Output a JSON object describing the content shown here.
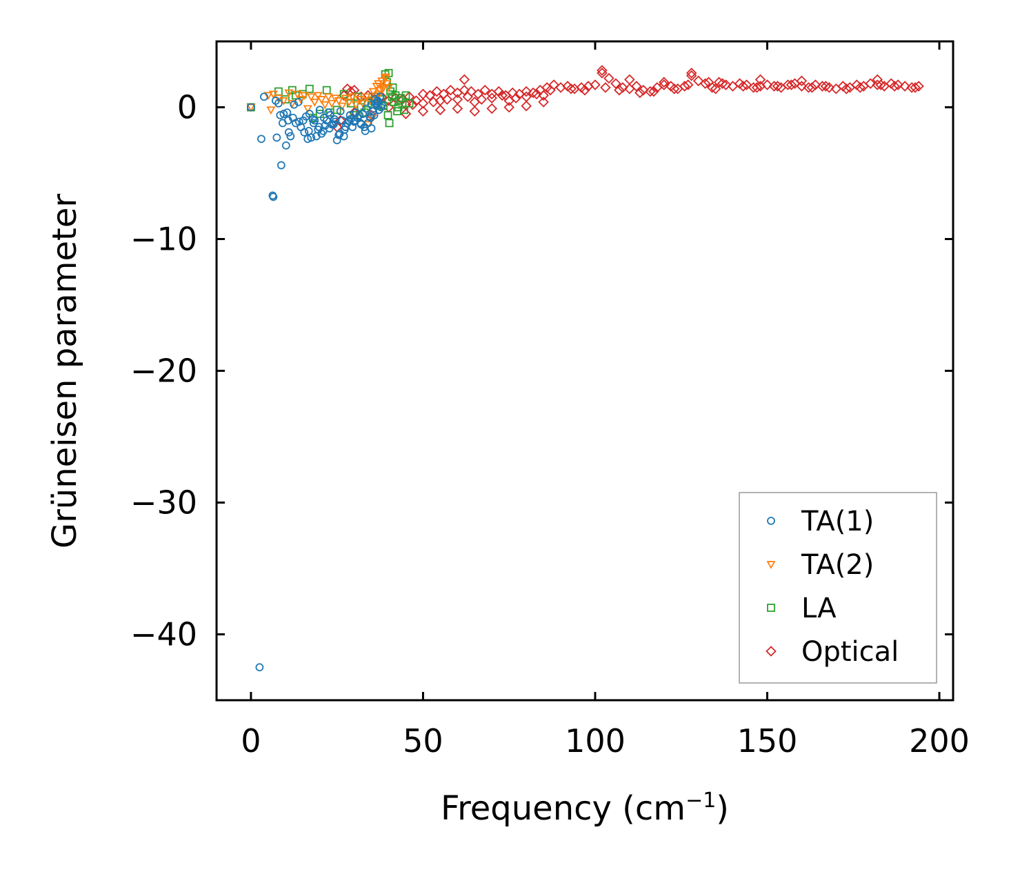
{
  "chart_data": {
    "type": "scatter",
    "title": "",
    "xlabel_main": "Frequency (cm",
    "xlabel_sup": "−1",
    "xlabel_end": ")",
    "ylabel": "Grüneisen parameter",
    "xlim": [
      -10,
      204
    ],
    "ylim": [
      -45,
      5
    ],
    "xticks": [
      0,
      50,
      100,
      150,
      200
    ],
    "xtick_labels": [
      "0",
      "50",
      "100",
      "150",
      "200"
    ],
    "yticks": [
      0,
      -10,
      -20,
      -30,
      -40
    ],
    "ytick_labels": [
      "0",
      "−10",
      "−20",
      "−30",
      "−40"
    ],
    "legend_position": "lower-right",
    "series": [
      {
        "name": "TA(1)",
        "marker": "circle",
        "color": "#1f77b4",
        "x": [
          0,
          2.5,
          3.8,
          6.5,
          7.2,
          8.0,
          8.8,
          9.5,
          10.2,
          10.8,
          11.5,
          12.2,
          13.0,
          13.8,
          14.5,
          15.2,
          16.0,
          16.8,
          17.5,
          18.2,
          19.0,
          19.8,
          20.5,
          21.2,
          22.0,
          22.8,
          23.5,
          24.2,
          25.0,
          25.8,
          26.5,
          27.2,
          28.0,
          28.8,
          29.5,
          30.2,
          31.0,
          31.8,
          32.5,
          33.2,
          34.0,
          34.5,
          35.0,
          35.5,
          36.0,
          36.5,
          37.0,
          37.5,
          38.0,
          17.0,
          18.5,
          20.0,
          21.5,
          23.0,
          24.5,
          26.0,
          27.5,
          29.0,
          30.5,
          32.0,
          33.5,
          35.0,
          36.2,
          37.2,
          15.5,
          19.5,
          22.5,
          25.5,
          28.5,
          31.5,
          34.8,
          36.8,
          12.5,
          14.0,
          16.5,
          18.0,
          21.0,
          24.0,
          27.0,
          30.0,
          33.0,
          35.8,
          37.8,
          3.0,
          6.3,
          7.5,
          8.5,
          10.5,
          11.0,
          9.2
        ],
        "y": [
          0.0,
          -42.5,
          0.8,
          -6.8,
          0.5,
          0.3,
          -4.4,
          -0.5,
          -2.9,
          -1.0,
          -2.2,
          -0.8,
          -1.2,
          0.4,
          -1.5,
          -1.0,
          -0.7,
          -1.8,
          -2.3,
          -1.2,
          -2.2,
          -1.5,
          -2.0,
          -0.8,
          -1.0,
          -1.6,
          -1.3,
          -0.9,
          -2.5,
          -2.0,
          -1.0,
          -1.7,
          -1.2,
          -0.6,
          -1.5,
          -1.0,
          -0.8,
          -1.2,
          -0.5,
          -1.8,
          -1.2,
          -0.7,
          0.2,
          -0.3,
          0.6,
          0.1,
          0.4,
          0.8,
          0.2,
          -0.5,
          -1.0,
          -0.2,
          -1.4,
          -0.6,
          -1.1,
          -0.3,
          -1.5,
          -0.9,
          -0.4,
          -1.3,
          -0.1,
          -1.6,
          0.3,
          -0.2,
          -1.9,
          -1.7,
          -0.4,
          -2.1,
          -1.0,
          -0.6,
          -0.8,
          0.5,
          0.2,
          -1.1,
          -2.4,
          -0.9,
          -1.8,
          -1.3,
          -2.2,
          -1.1,
          -1.5,
          -0.6,
          0.0,
          -2.4,
          -6.7,
          -2.3,
          -0.6,
          -0.4,
          -1.9,
          -1.2
        ]
      },
      {
        "name": "TA(2)",
        "marker": "triangle_down",
        "color": "#ff7f0e",
        "x": [
          0,
          5.0,
          5.8,
          6.5,
          8.0,
          9.5,
          11.0,
          12.0,
          13.5,
          14.5,
          15.5,
          16.5,
          17.5,
          18.5,
          19.5,
          20.5,
          21.5,
          22.5,
          23.5,
          24.5,
          25.5,
          26.5,
          27.5,
          28.5,
          29.5,
          30.5,
          31.5,
          32.5,
          33.5,
          34.5,
          35.5,
          36.5,
          37.0,
          37.5,
          38.0,
          38.5,
          39.0,
          39.5,
          40.0,
          36.0,
          37.2,
          38.2,
          39.2,
          35.2,
          34.0
        ],
        "y": [
          0.0,
          0.9,
          -0.2,
          1.0,
          0.7,
          0.5,
          1.1,
          0.3,
          1.0,
          0.6,
          0.9,
          -0.1,
          0.8,
          0.4,
          0.9,
          0.6,
          0.2,
          0.8,
          0.3,
          0.7,
          0.5,
          0.1,
          0.7,
          0.4,
          0.8,
          0.2,
          0.6,
          0.3,
          0.8,
          0.5,
          1.2,
          1.6,
          1.8,
          1.3,
          2.0,
          1.5,
          2.2,
          1.8,
          1.5,
          0.6,
          1.0,
          1.4,
          2.3,
          -0.8,
          -1.3
        ]
      },
      {
        "name": "LA",
        "marker": "square",
        "color": "#2ca02c",
        "x": [
          0,
          8.0,
          10.0,
          12.0,
          13.0,
          15.0,
          17.0,
          18.0,
          20.0,
          22.0,
          23.0,
          25.0,
          27.0,
          29.0,
          30.0,
          31.0,
          32.0,
          33.0,
          34.0,
          35.0,
          36.0,
          37.0,
          38.0,
          39.0,
          39.5,
          40.0,
          40.5,
          41.0,
          41.5,
          42.0,
          42.5,
          43.0,
          43.5,
          44.0,
          45.0,
          46.0,
          40.2,
          39.8,
          41.2,
          42.8,
          44.5,
          38.5
        ],
        "y": [
          0.0,
          1.2,
          0.6,
          1.3,
          0.9,
          1.0,
          1.4,
          -0.8,
          -0.5,
          1.3,
          -0.4,
          -0.2,
          1.0,
          0.3,
          -0.6,
          0.8,
          0.0,
          -0.4,
          0.3,
          0.5,
          0.8,
          0.2,
          0.6,
          2.5,
          1.9,
          2.6,
          1.2,
          0.8,
          0.4,
          0.9,
          -0.3,
          0.5,
          0.7,
          0.2,
          0.9,
          0.3,
          -1.2,
          -0.6,
          1.5,
          0.0,
          -0.2,
          0.1
        ]
      },
      {
        "name": "Optical",
        "marker": "diamond",
        "color": "#d62728",
        "x": [
          25,
          26,
          27,
          28,
          29,
          30,
          32,
          34,
          36,
          38,
          40,
          42,
          44,
          46,
          48,
          50,
          52,
          54,
          56,
          58,
          60,
          62,
          64,
          66,
          68,
          70,
          72,
          74,
          76,
          78,
          80,
          82,
          84,
          86,
          88,
          90,
          92,
          94,
          96,
          98,
          100,
          102,
          104,
          106,
          108,
          110,
          112,
          114,
          116,
          118,
          120,
          122,
          124,
          126,
          128,
          130,
          132,
          134,
          136,
          138,
          140,
          142,
          144,
          146,
          148,
          150,
          152,
          154,
          156,
          158,
          160,
          162,
          164,
          166,
          168,
          170,
          172,
          174,
          176,
          178,
          180,
          182,
          184,
          186,
          188,
          190,
          192,
          194,
          45,
          50,
          55,
          60,
          65,
          70,
          75,
          80,
          85,
          45,
          50,
          55,
          60,
          65,
          70,
          75,
          80,
          85,
          102,
          128,
          135,
          62,
          110,
          120,
          148,
          160,
          182,
          30,
          35,
          40,
          47,
          53,
          57,
          63,
          67,
          73,
          77,
          83,
          87,
          93,
          97,
          103,
          107,
          113,
          117,
          123,
          127,
          133,
          137,
          143,
          147,
          153,
          157,
          163,
          167,
          173,
          177,
          183,
          187,
          193
        ],
        "y": [
          -1.5,
          -1.0,
          0.9,
          1.4,
          1.2,
          1.3,
          0.8,
          0.9,
          0.6,
          0.8,
          0.5,
          0.7,
          0.6,
          0.8,
          0.5,
          1.0,
          0.9,
          1.2,
          1.0,
          1.3,
          1.1,
          1.3,
          1.2,
          1.0,
          1.3,
          1.0,
          1.2,
          0.9,
          1.1,
          1.0,
          1.2,
          1.1,
          1.3,
          1.5,
          1.7,
          1.5,
          1.6,
          1.4,
          1.5,
          1.6,
          1.7,
          2.6,
          2.2,
          1.8,
          1.5,
          1.4,
          1.6,
          1.3,
          1.2,
          1.5,
          1.7,
          1.6,
          1.4,
          1.6,
          2.4,
          2.0,
          1.8,
          1.5,
          1.9,
          1.7,
          1.6,
          1.8,
          1.7,
          1.5,
          1.6,
          1.7,
          1.6,
          1.5,
          1.7,
          1.8,
          1.6,
          1.5,
          1.7,
          1.6,
          1.5,
          1.4,
          1.6,
          1.5,
          1.7,
          1.6,
          1.8,
          1.7,
          1.6,
          1.8,
          1.7,
          1.6,
          1.5,
          1.6,
          -0.5,
          -0.3,
          -0.2,
          -0.1,
          -0.3,
          -0.1,
          0.0,
          0.1,
          0.4,
          0.2,
          0.3,
          0.5,
          0.6,
          0.4,
          0.7,
          0.5,
          0.8,
          0.9,
          2.8,
          2.6,
          1.4,
          2.1,
          2.1,
          1.9,
          2.1,
          2.0,
          2.1,
          -0.4,
          -0.6,
          0.0,
          0.2,
          0.4,
          0.6,
          0.8,
          0.6,
          0.9,
          0.7,
          1.0,
          1.3,
          1.4,
          1.3,
          1.5,
          1.3,
          1.1,
          1.2,
          1.4,
          1.7,
          1.9,
          1.8,
          1.6,
          1.5,
          1.6,
          1.7,
          1.5,
          1.6,
          1.4,
          1.5,
          1.7,
          1.6,
          1.5
        ]
      }
    ]
  }
}
